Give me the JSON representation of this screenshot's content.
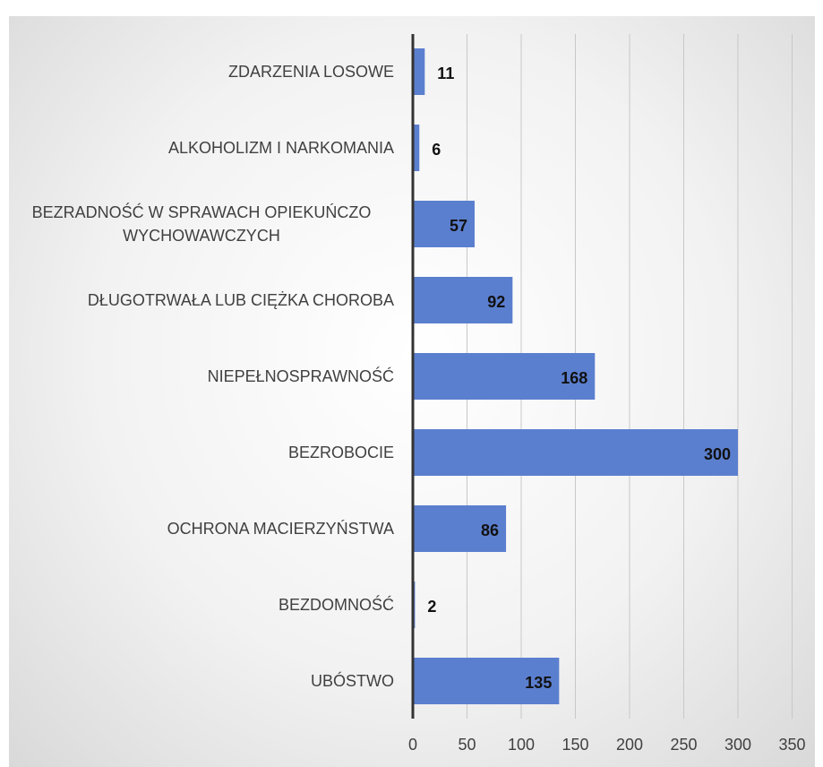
{
  "chart_data": {
    "type": "bar",
    "orientation": "horizontal",
    "categories": [
      "ZDARZENIA LOSOWE",
      "ALKOHOLIZM I NARKOMANIA",
      "BEZRADNOŚĆ W SPRAWACH OPIEKUŃCZO WYCHOWAWCZYCH",
      "DŁUGOTRWAŁA LUB CIĘŻKA CHOROBA",
      "NIEPEŁNOSPRAWNOŚĆ",
      "BEZROBOCIE",
      "OCHRONA MACIERZYŃSTWA",
      "BEZDOMNOŚĆ",
      "UBÓSTWO"
    ],
    "values": [
      11,
      6,
      57,
      92,
      168,
      300,
      86,
      2,
      135
    ],
    "color": "#5b7fcf",
    "xlim": [
      0,
      350
    ],
    "xticks": [
      0,
      50,
      100,
      150,
      200,
      250,
      300,
      350
    ],
    "grid": true
  }
}
